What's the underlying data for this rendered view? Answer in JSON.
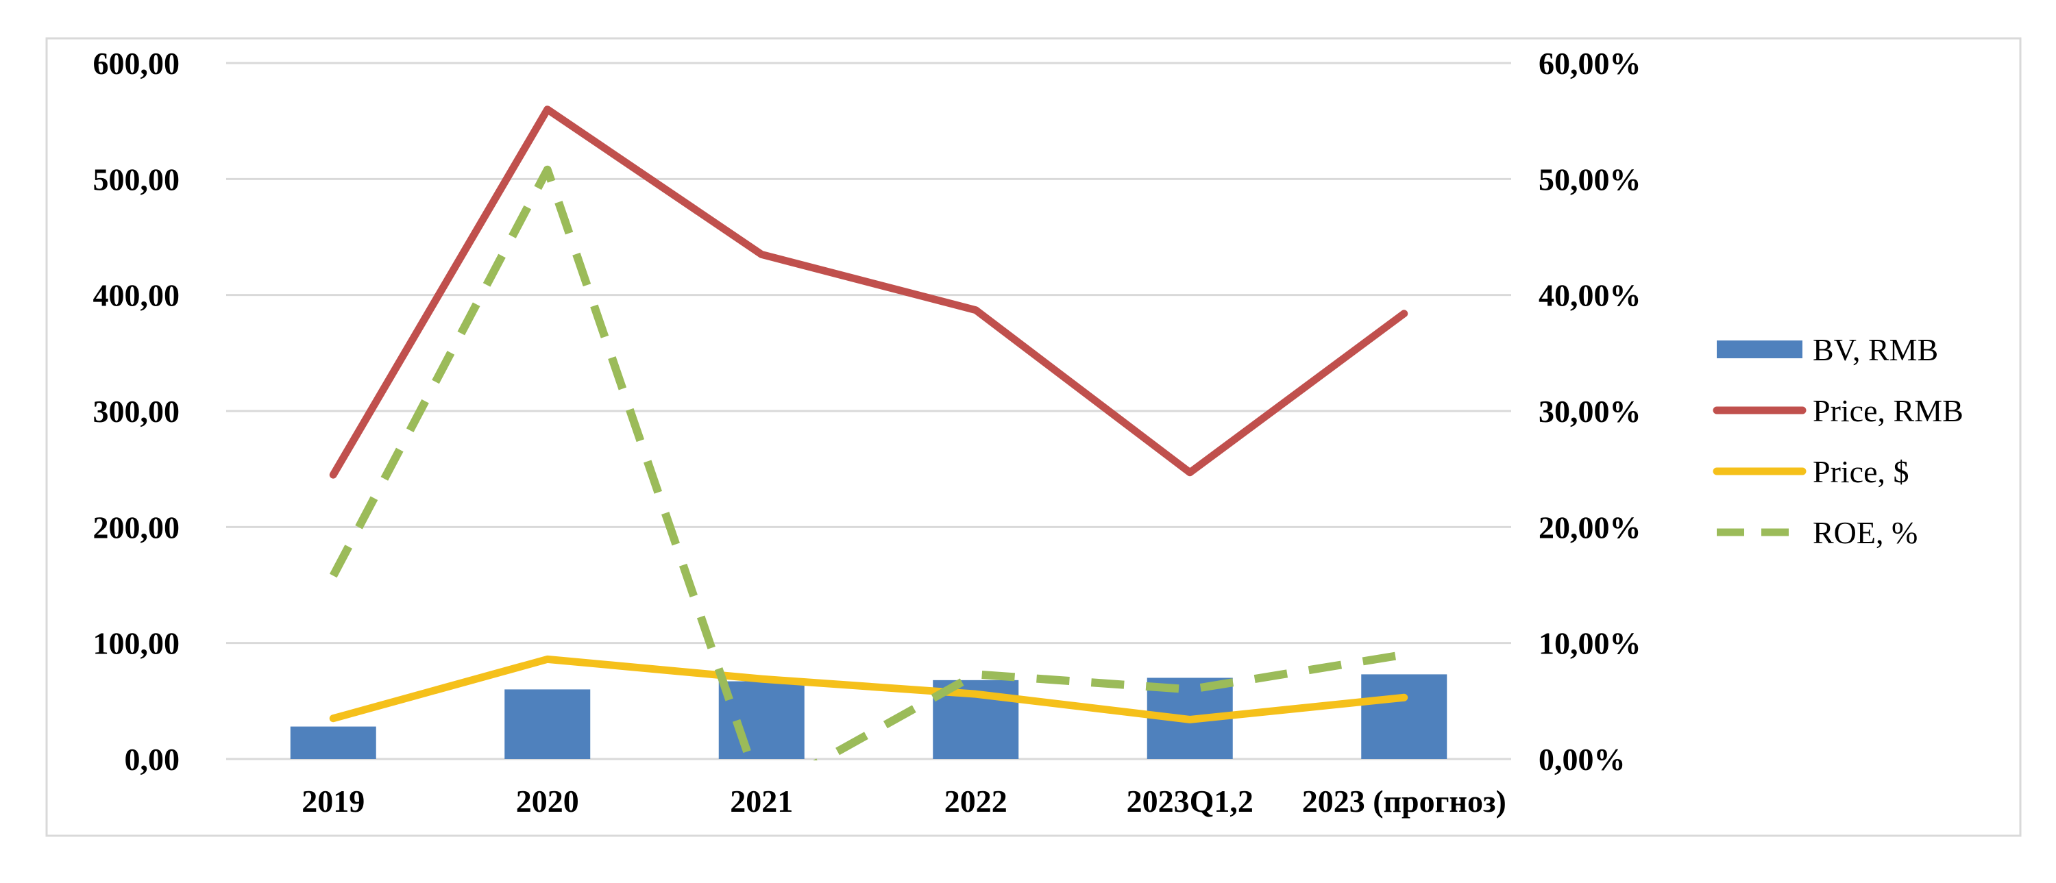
{
  "chart_data": {
    "type": "bar",
    "categories": [
      "2019",
      "2020",
      "2021",
      "2022",
      "2023Q1,2",
      "2023 (прогноз)"
    ],
    "y_left": {
      "range": [
        0,
        600
      ],
      "ticks": [
        0,
        100,
        200,
        300,
        400,
        500,
        600
      ],
      "tick_labels": [
        "0,00",
        "100,00",
        "200,00",
        "300,00",
        "400,00",
        "500,00",
        "600,00"
      ]
    },
    "y_right": {
      "range": [
        0,
        60
      ],
      "ticks": [
        0,
        10,
        20,
        30,
        40,
        50,
        60
      ],
      "tick_labels": [
        "0,00%",
        "10,00%",
        "20,00%",
        "30,00%",
        "40,00%",
        "50,00%",
        "60,00%"
      ]
    },
    "grid": true,
    "legend_position": "right",
    "series": [
      {
        "name": "BV, RMB",
        "type": "bar",
        "axis": "left",
        "color": "#4F81BD",
        "values": [
          28,
          60,
          67,
          68,
          70,
          73
        ]
      },
      {
        "name": "Price, RMB",
        "type": "line",
        "axis": "left",
        "color": "#C0504D",
        "style": "solid",
        "values": [
          245,
          560,
          435,
          387,
          247,
          384
        ]
      },
      {
        "name": "Price, $",
        "type": "line",
        "axis": "left",
        "color": "#F5C01A",
        "style": "solid",
        "values": [
          35,
          86,
          69,
          56,
          34,
          53
        ]
      },
      {
        "name": "ROE, %",
        "type": "line",
        "axis": "right",
        "color": "#9BBB59",
        "style": "dashed",
        "values": [
          15.8,
          50.8,
          -3.0,
          7.3,
          6.0,
          9.0
        ]
      }
    ]
  }
}
